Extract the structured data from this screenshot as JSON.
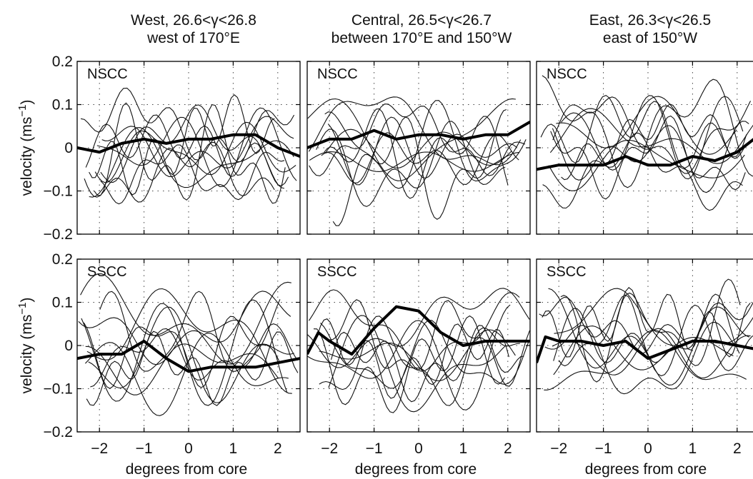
{
  "columns": [
    {
      "title_line1": "West, 26.6<γ<26.8",
      "title_line2": "west of 170°E"
    },
    {
      "title_line1": "Central, 26.5<γ<26.7",
      "title_line2": "between 170°E and 150°W"
    },
    {
      "title_line1": "East, 26.3<γ<26.5",
      "title_line2": "east of 150°W"
    }
  ],
  "ylabel": "velocity (ms",
  "ylabel_sup": "−1",
  "ylabel_close": ")",
  "xlabel": "degrees from core",
  "chart_data": [
    {
      "type": "line",
      "panel": "West NSCC",
      "label": "NSCC",
      "x": [
        -2.5,
        -2,
        -1.5,
        -1,
        -0.5,
        0,
        0.5,
        1,
        1.5,
        2,
        2.5
      ],
      "series": [
        {
          "name": "mean",
          "values": [
            0.0,
            -0.01,
            0.01,
            0.02,
            0.01,
            0.02,
            0.02,
            0.03,
            0.03,
            0.0,
            -0.02
          ]
        }
      ],
      "xlim": [
        -2.5,
        2.5
      ],
      "ylim": [
        -0.2,
        0.2
      ],
      "grid": "dotted"
    },
    {
      "type": "line",
      "panel": "Central NSCC",
      "label": "NSCC",
      "x": [
        -2.5,
        -2,
        -1.5,
        -1,
        -0.5,
        0,
        0.5,
        1,
        1.5,
        2,
        2.5
      ],
      "series": [
        {
          "name": "mean",
          "values": [
            0.0,
            0.02,
            0.02,
            0.04,
            0.02,
            0.03,
            0.03,
            0.02,
            0.03,
            0.03,
            0.06
          ]
        }
      ],
      "xlim": [
        -2.5,
        2.5
      ],
      "ylim": [
        -0.2,
        0.2
      ],
      "grid": "dotted"
    },
    {
      "type": "line",
      "panel": "East NSCC",
      "label": "NSCC",
      "x": [
        -2.5,
        -2,
        -1.5,
        -1,
        -0.5,
        0,
        0.5,
        1,
        1.5,
        2,
        2.5
      ],
      "series": [
        {
          "name": "mean",
          "values": [
            -0.05,
            -0.04,
            -0.04,
            -0.04,
            -0.02,
            -0.04,
            -0.04,
            -0.02,
            -0.03,
            -0.01,
            0.03
          ]
        }
      ],
      "xlim": [
        -2.5,
        2.5
      ],
      "ylim": [
        -0.2,
        0.2
      ],
      "grid": "dotted"
    },
    {
      "type": "line",
      "panel": "West SSCC",
      "label": "SSCC",
      "x": [
        -2.5,
        -2,
        -1.5,
        -1,
        -0.5,
        0,
        0.5,
        1,
        1.5,
        2,
        2.5
      ],
      "series": [
        {
          "name": "mean",
          "values": [
            -0.03,
            -0.02,
            -0.02,
            0.01,
            -0.03,
            -0.06,
            -0.05,
            -0.05,
            -0.05,
            -0.04,
            -0.03
          ]
        }
      ],
      "xlim": [
        -2.5,
        2.5
      ],
      "ylim": [
        -0.2,
        0.2
      ],
      "grid": "dotted"
    },
    {
      "type": "line",
      "panel": "Central SSCC",
      "label": "SSCC",
      "x": [
        -2.5,
        -2.25,
        -2,
        -1.5,
        -1,
        -0.5,
        0,
        0.5,
        1,
        1.5,
        2,
        2.5
      ],
      "series": [
        {
          "name": "mean",
          "values": [
            -0.02,
            0.03,
            0.01,
            -0.02,
            0.04,
            0.09,
            0.08,
            0.03,
            0.0,
            0.01,
            0.01,
            0.01
          ]
        }
      ],
      "xlim": [
        -2.5,
        2.5
      ],
      "ylim": [
        -0.2,
        0.2
      ],
      "grid": "dotted"
    },
    {
      "type": "line",
      "panel": "East SSCC",
      "label": "SSCC",
      "x": [
        -2.5,
        -2.3,
        -2,
        -1.5,
        -1,
        -0.5,
        0,
        0.5,
        1,
        1.5,
        2,
        2.5
      ],
      "series": [
        {
          "name": "mean",
          "values": [
            -0.04,
            0.02,
            0.01,
            0.01,
            0.0,
            0.01,
            -0.03,
            -0.01,
            0.01,
            0.01,
            0.0,
            -0.01
          ]
        }
      ],
      "xlim": [
        -2.5,
        2.5
      ],
      "ylim": [
        -0.2,
        0.2
      ],
      "grid": "dotted"
    }
  ],
  "yticks": [
    "0.2",
    "0.1",
    "0",
    "−0.1",
    "−0.2"
  ],
  "xticks": [
    "−2",
    "−1",
    "0",
    "1",
    "2"
  ]
}
